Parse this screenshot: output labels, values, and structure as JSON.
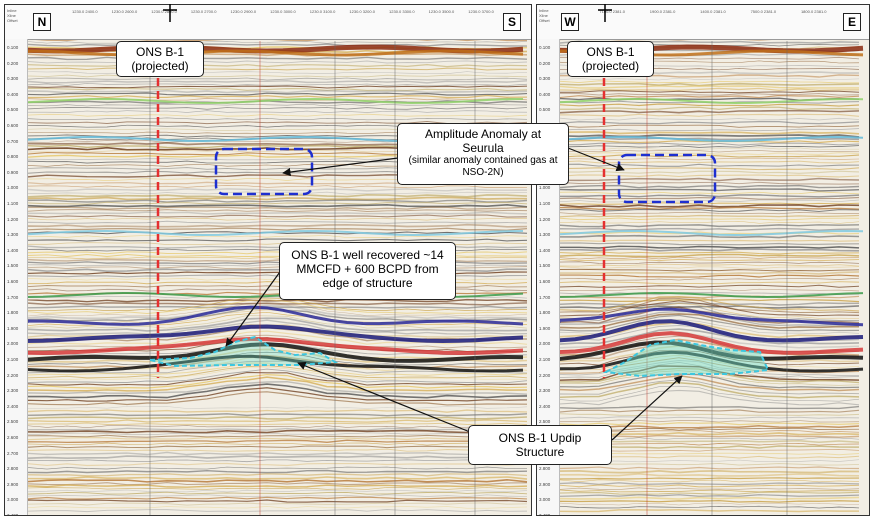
{
  "left_panel": {
    "dir_left": "N",
    "dir_right": "S",
    "header_labels": [
      "Inline",
      "Xline",
      "Offset"
    ],
    "header_nums": [
      "1230.0\n2400.0",
      "1230.0\n2600.0",
      "1230.0\n2800.0",
      "1230.0\n2700.0",
      "1230.0\n2900.0",
      "1230.0\n3000.0",
      "1230.0\n3100.0",
      "1230.0\n3200.0",
      "1230.0\n3300.0",
      "1230.0\n3500.0",
      "1230.0\n3700.0"
    ],
    "well_label": "ONS B-1",
    "well_sub": "(projected)"
  },
  "right_panel": {
    "dir_left": "W",
    "dir_right": "E",
    "header_nums": [
      "7100.0\n2381.0",
      "1900.0\n2381.0",
      "1400.0\n2381.0",
      "7500.0\n2381.0",
      "1800.0\n2381.0"
    ],
    "well_label": "ONS B-1",
    "well_sub": "(projected)"
  },
  "time_ticks": [
    "0.100",
    "0.200",
    "0.300",
    "0.400",
    "0.500",
    "0.600",
    "0.700",
    "0.800",
    "0.900",
    "1.000",
    "1.100",
    "1.200",
    "1.300",
    "1.400",
    "1.500",
    "1.600",
    "1.700",
    "1.800",
    "1.900",
    "2.000",
    "2.100",
    "2.200",
    "2.300",
    "2.400",
    "2.500",
    "2.600",
    "2.700",
    "2.800",
    "2.900",
    "3.000",
    "3.400"
  ],
  "callouts": {
    "amplitude_title": "Amplitude Anomaly at Seurula",
    "amplitude_note": "(similar anomaly contained gas at NSO-2N)",
    "well_recovery": "ONS B-1 well recovered ~14 MMCFD + 600 BCPD from edge of structure",
    "updip": "ONS B-1 Updip Structure"
  },
  "colors": {
    "well_line": "#e53030",
    "anomaly_box": "#1e2fd0",
    "structure_outline": "#3cc7e0",
    "structure_fill": "#6fe0c8"
  }
}
